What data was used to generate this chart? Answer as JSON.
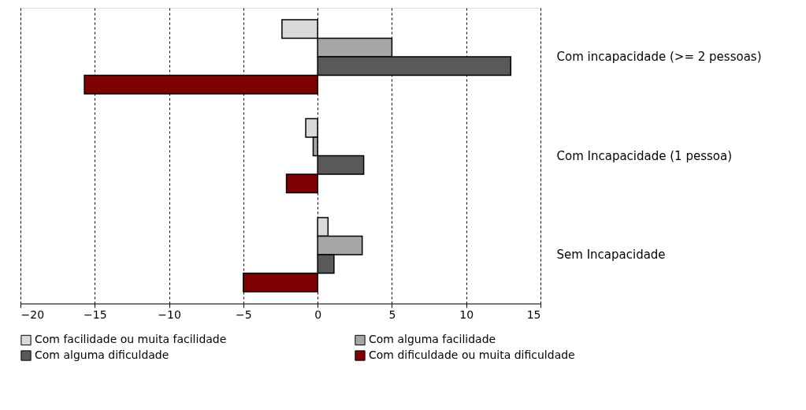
{
  "chart_data": {
    "type": "bar",
    "orientation": "horizontal",
    "categories": [
      "Com incapacidade (>= 2 pessoas)",
      "Com Incapacidade (1 pessoa)",
      "Sem Incapacidade"
    ],
    "series": [
      {
        "name": "Com facilidade ou muita facilidade",
        "color": "#d9d9d9",
        "values": [
          -2.4,
          -0.8,
          0.7
        ]
      },
      {
        "name": "Com alguma facilidade",
        "color": "#a6a6a6",
        "values": [
          5.0,
          -0.3,
          3.0
        ]
      },
      {
        "name": "Com alguma dificuldade",
        "color": "#595959",
        "values": [
          13.0,
          3.1,
          1.1
        ]
      },
      {
        "name": "Com dificuldade ou muita dificuldade",
        "color": "#7f0000",
        "values": [
          -15.7,
          -2.1,
          -5.0
        ]
      }
    ],
    "xlim": [
      -20,
      15
    ],
    "xticks": [
      -20,
      -15,
      -10,
      -5,
      0,
      5,
      10,
      15
    ],
    "grid": "x",
    "legend": "bottom"
  }
}
